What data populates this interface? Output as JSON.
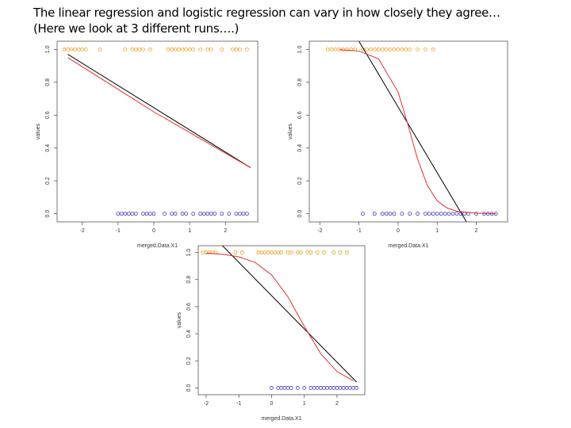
{
  "header": {
    "lines": [
      "The linear regression and logistic regression can vary in how closely they agree…",
      "(Here we look at 3 different runs….)"
    ]
  },
  "chart_data": [
    {
      "type": "scatter",
      "x_label": "merged.Data.X1",
      "y_label": "values",
      "xlim": [
        -2.7,
        2.9
      ],
      "ylim": [
        -0.05,
        1.05
      ],
      "xticks": [
        -2,
        -1,
        0,
        1,
        2
      ],
      "yticks": [
        {
          "value": 0,
          "label": "0.0"
        },
        {
          "value": 0.2,
          "label": "0.2"
        },
        {
          "value": 0.4,
          "label": "0.4"
        },
        {
          "value": 0.6,
          "label": "0.6"
        },
        {
          "value": 0.8,
          "label": "0.8"
        },
        {
          "value": 1,
          "label": "1.0"
        }
      ],
      "series": [
        {
          "mode": "points",
          "color": "#f0a020",
          "x": [
            -2.5,
            -2.4,
            -2.3,
            -2.2,
            -2.1,
            -2.0,
            -1.9,
            -1.5,
            -0.8,
            -0.6,
            -0.5,
            -0.4,
            -0.3,
            -0.1,
            0.4,
            0.5,
            0.6,
            0.7,
            0.8,
            0.9,
            1.0,
            1.1,
            1.3,
            1.5,
            1.6,
            1.9,
            2.2,
            2.3,
            2.4,
            2.6
          ],
          "values": [
            1,
            1,
            1,
            1,
            1,
            1,
            1,
            1,
            1,
            1,
            1,
            1,
            1,
            1,
            1,
            1,
            1,
            1,
            1,
            1,
            1,
            1,
            1,
            1,
            1,
            1,
            1,
            1,
            1,
            1
          ]
        },
        {
          "mode": "points",
          "color": "#3838b8",
          "x": [
            -1.0,
            -0.9,
            -0.8,
            -0.7,
            -0.6,
            -0.5,
            -0.3,
            -0.2,
            -0.1,
            0.0,
            0.3,
            0.5,
            0.6,
            0.8,
            0.9,
            1.1,
            1.3,
            1.4,
            1.5,
            1.6,
            1.7,
            1.9,
            2.1,
            2.3,
            2.4,
            2.5,
            2.6
          ],
          "values": [
            0,
            0,
            0,
            0,
            0,
            0,
            0,
            0,
            0,
            0,
            0,
            0,
            0,
            0,
            0,
            0,
            0,
            0,
            0,
            0,
            0,
            0,
            0,
            0,
            0,
            0,
            0
          ]
        },
        {
          "mode": "line",
          "color": "#000000",
          "x": [
            -2.4,
            2.7
          ],
          "values": [
            0.97,
            0.28
          ]
        },
        {
          "mode": "line",
          "color": "#e03030",
          "x": [
            -2.4,
            0,
            2.7
          ],
          "values": [
            0.95,
            0.62,
            0.28
          ]
        }
      ]
    },
    {
      "type": "scatter",
      "x_label": "merged.Data.X1",
      "y_label": "values",
      "xlim": [
        -2.27,
        2.8
      ],
      "ylim": [
        -0.05,
        1.05
      ],
      "xticks": [
        -2,
        -1,
        0,
        1,
        2
      ],
      "yticks": [
        {
          "value": 0,
          "label": "0.0"
        },
        {
          "value": 0.2,
          "label": "0.2"
        },
        {
          "value": 0.4,
          "label": "0.4"
        },
        {
          "value": 0.6,
          "label": "0.6"
        },
        {
          "value": 0.8,
          "label": "0.8"
        },
        {
          "value": 1,
          "label": "1.0"
        }
      ],
      "series": [
        {
          "mode": "points",
          "color": "#f0a020",
          "x": [
            -1.8,
            -1.7,
            -1.6,
            -1.5,
            -1.4,
            -1.3,
            -1.2,
            -1.1,
            -0.9,
            -0.8,
            -0.7,
            -0.6,
            -0.5,
            -0.4,
            -0.3,
            -0.2,
            -0.1,
            0.0,
            0.1,
            0.2,
            0.3,
            0.5,
            0.7,
            0.9
          ],
          "values": [
            1,
            1,
            1,
            1,
            1,
            1,
            1,
            1,
            1,
            1,
            1,
            1,
            1,
            1,
            1,
            1,
            1,
            1,
            1,
            1,
            1,
            1,
            1,
            1
          ]
        },
        {
          "mode": "points",
          "color": "#3838b8",
          "x": [
            -0.9,
            -0.6,
            -0.4,
            -0.3,
            -0.2,
            -0.1,
            0.1,
            0.3,
            0.5,
            0.7,
            0.8,
            0.9,
            1.0,
            1.1,
            1.2,
            1.3,
            1.4,
            1.5,
            1.6,
            1.7,
            1.8,
            2.0,
            2.2,
            2.3,
            2.4,
            2.5
          ],
          "values": [
            0,
            0,
            0,
            0,
            0,
            0,
            0,
            0,
            0,
            0,
            0,
            0,
            0,
            0,
            0,
            0,
            0,
            0,
            0,
            0,
            0,
            0,
            0,
            0,
            0,
            0
          ]
        },
        {
          "mode": "line",
          "color": "#000000",
          "x": [
            -1.0,
            1.75
          ],
          "values": [
            1.05,
            -0.05
          ]
        },
        {
          "mode": "line",
          "color": "#e03030",
          "x": [
            -1.5,
            -1,
            -0.5,
            0,
            0.25,
            0.5,
            0.75,
            1,
            1.25,
            1.5,
            2,
            2.5
          ],
          "values": [
            0.998,
            0.99,
            0.943,
            0.741,
            0.544,
            0.332,
            0.171,
            0.079,
            0.035,
            0.015,
            0.003,
            0
          ]
        }
      ]
    },
    {
      "type": "scatter",
      "x_label": "merged.Data.X1",
      "y_label": "values",
      "xlim": [
        -2.24,
        2.85
      ],
      "ylim": [
        -0.05,
        1.05
      ],
      "xticks": [
        -2,
        -1,
        0,
        1,
        2
      ],
      "yticks": [
        {
          "value": 0,
          "label": "0.0"
        },
        {
          "value": 0.2,
          "label": "0.2"
        },
        {
          "value": 0.4,
          "label": "0.4"
        },
        {
          "value": 0.6,
          "label": "0.6"
        },
        {
          "value": 0.8,
          "label": "0.8"
        },
        {
          "value": 1,
          "label": "1.0"
        }
      ],
      "series": [
        {
          "mode": "points",
          "color": "#f0a020",
          "x": [
            -2.1,
            -2.0,
            -1.9,
            -1.8,
            -1.7,
            -1.1,
            -0.9,
            -0.4,
            -0.3,
            -0.2,
            -0.1,
            0.0,
            0.1,
            0.2,
            0.3,
            0.5,
            0.6,
            0.8,
            0.9,
            1.1,
            1.2,
            1.4,
            1.6,
            1.9,
            2.1,
            2.3
          ],
          "values": [
            1,
            1,
            1,
            1,
            1,
            1,
            1,
            1,
            1,
            1,
            1,
            1,
            1,
            1,
            1,
            1,
            1,
            1,
            1,
            1,
            1,
            1,
            1,
            1,
            1,
            1
          ]
        },
        {
          "mode": "points",
          "color": "#3838b8",
          "x": [
            0.0,
            0.2,
            0.3,
            0.4,
            0.5,
            0.6,
            0.8,
            1.0,
            1.2,
            1.3,
            1.4,
            1.5,
            1.6,
            1.7,
            1.8,
            1.9,
            2.0,
            2.1,
            2.2,
            2.3,
            2.4,
            2.5,
            2.6
          ],
          "values": [
            0,
            0,
            0,
            0,
            0,
            0,
            0,
            0,
            0,
            0,
            0,
            0,
            0,
            0,
            0,
            0,
            0,
            0,
            0,
            0,
            0,
            0,
            0
          ]
        },
        {
          "mode": "line",
          "color": "#000000",
          "x": [
            -1.5,
            2.6
          ],
          "values": [
            1.05,
            0.043
          ]
        },
        {
          "mode": "line",
          "color": "#e03030",
          "x": [
            -2,
            -1.5,
            -1,
            -0.5,
            0,
            0.5,
            1,
            1.5,
            2,
            2.5
          ],
          "values": [
            0.995,
            0.987,
            0.968,
            0.926,
            0.835,
            0.673,
            0.455,
            0.254,
            0.121,
            0.053
          ]
        }
      ]
    }
  ]
}
